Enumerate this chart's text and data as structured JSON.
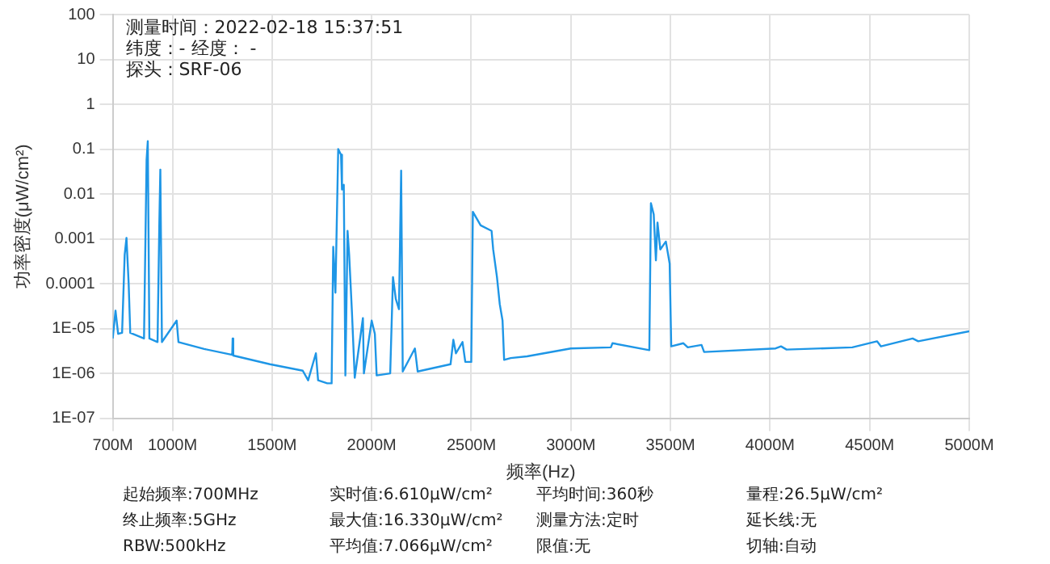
{
  "chart_data": {
    "type": "line",
    "xlabel": "频率(Hz)",
    "ylabel": "功率密度(μW/cm²)",
    "x": [
      700000000,
      714000000,
      727000000,
      747000000,
      760000000,
      769000000,
      780000000,
      788000000,
      857000000,
      870000000,
      876000000,
      884000000,
      925000000,
      934000000,
      939000000,
      947000000,
      1021000000,
      1030000000,
      1159000000,
      1300000000,
      1302000000,
      1305000000,
      1489000000,
      1654000000,
      1681000000,
      1720000000,
      1731000000,
      1777000000,
      1799000000,
      1807000000,
      1818000000,
      1832000000,
      1846000000,
      1851000000,
      1860000000,
      1868000000,
      1879000000,
      1887000000,
      1901000000,
      1915000000,
      1956000000,
      1961000000,
      2000000000,
      2016000000,
      2025000000,
      2093000000,
      2107000000,
      2121000000,
      2137000000,
      2148000000,
      2156000000,
      2217000000,
      2231000000,
      2396000000,
      2410000000,
      2423000000,
      2456000000,
      2470000000,
      2500000000,
      2508000000,
      2547000000,
      2602000000,
      2610000000,
      2629000000,
      2643000000,
      2657000000,
      2665000000,
      2698000000,
      2780000000,
      3000000000,
      3201000000,
      3209000000,
      3394000000,
      3402000000,
      3416000000,
      3427000000,
      3435000000,
      3449000000,
      3477000000,
      3496000000,
      3504000000,
      3565000000,
      3587000000,
      3656000000,
      3669000000,
      4028000000,
      4055000000,
      4083000000,
      4413000000,
      4537000000,
      4557000000,
      4716000000,
      4744000000,
      5000000000
    ],
    "series": [
      {
        "color": "#1e96e6",
        "values": [
          6e-06,
          2.5e-05,
          7.6e-06,
          8e-06,
          0.00044,
          0.00105,
          0.0001,
          8e-06,
          6e-06,
          0.058,
          0.15,
          6e-06,
          5e-06,
          0.0023,
          0.035,
          5e-06,
          1.5e-05,
          5e-06,
          3.5e-06,
          2.6e-06,
          6e-06,
          2.5e-06,
          1.6e-06,
          1.15e-06,
          7e-07,
          2.8e-06,
          7e-07,
          6e-07,
          6e-07,
          0.00066,
          6.3e-05,
          0.1,
          0.075,
          0.0126,
          0.016,
          9e-07,
          0.0015,
          0.00044,
          2.3e-05,
          8e-07,
          1.7e-05,
          1e-06,
          1.5e-05,
          7.6e-06,
          9e-07,
          1e-06,
          0.00014,
          4.6e-05,
          2.7e-05,
          0.033,
          1.1e-06,
          3.6e-06,
          1.1e-06,
          1.6e-06,
          5.6e-06,
          2.8e-06,
          5e-06,
          1.8e-06,
          1.8e-06,
          0.004,
          0.002,
          0.0015,
          0.00058,
          0.00014,
          3.5e-05,
          1.5e-05,
          2e-06,
          2.2e-06,
          2.4e-06,
          3.6e-06,
          3.8e-06,
          4.7e-06,
          3.3e-06,
          0.0062,
          0.0035,
          0.00033,
          0.0023,
          0.00058,
          0.00087,
          0.00028,
          4e-06,
          4.7e-06,
          3.8e-06,
          4.3e-06,
          3e-06,
          3.6e-06,
          4e-06,
          3.4e-06,
          3.8e-06,
          5.2e-06,
          4e-06,
          6e-06,
          5.2e-06,
          8.7e-06
        ]
      }
    ],
    "xlim": [
      700000000,
      5000000000
    ],
    "xticks": [
      {
        "value": 700000000,
        "label": "700M"
      },
      {
        "value": 1000000000,
        "label": "1000M"
      },
      {
        "value": 1500000000,
        "label": "1500M"
      },
      {
        "value": 2000000000,
        "label": "2000M"
      },
      {
        "value": 2500000000,
        "label": "2500M"
      },
      {
        "value": 3000000000,
        "label": "3000M"
      },
      {
        "value": 3500000000,
        "label": "3500M"
      },
      {
        "value": 4000000000,
        "label": "4000M"
      },
      {
        "value": 4500000000,
        "label": "4500M"
      },
      {
        "value": 5000000000,
        "label": "5000M"
      }
    ],
    "ylim": [
      1e-07,
      100
    ],
    "log": true,
    "yticks": [
      100,
      10,
      1,
      0.1,
      0.01,
      0.001,
      0.0001,
      {
        "value": 1e-05,
        "label": "1E-05"
      },
      {
        "value": 1e-06,
        "label": "1E-06"
      },
      {
        "value": 1e-07,
        "label": "1E-07"
      }
    ],
    "grid": true,
    "legend": false,
    "marker": "none",
    "line_style": "solid",
    "annotations": [
      "测量时间：2022-02-18 15:37:51",
      "纬度：- 经度： -",
      "探头：SRF-06",
      "起始频率:700MHz",
      "实时值:6.610μW/cm²",
      "平均时间:360秒",
      "量程:26.5μW/cm²",
      "终止频率:5GHz",
      "最大值:16.330μW/cm²",
      "测量方法:定时",
      "延长线:无",
      "RBW:500kHz",
      "平均值:7.066μW/cm²",
      "限值:无",
      "切轴:自动"
    ]
  }
}
